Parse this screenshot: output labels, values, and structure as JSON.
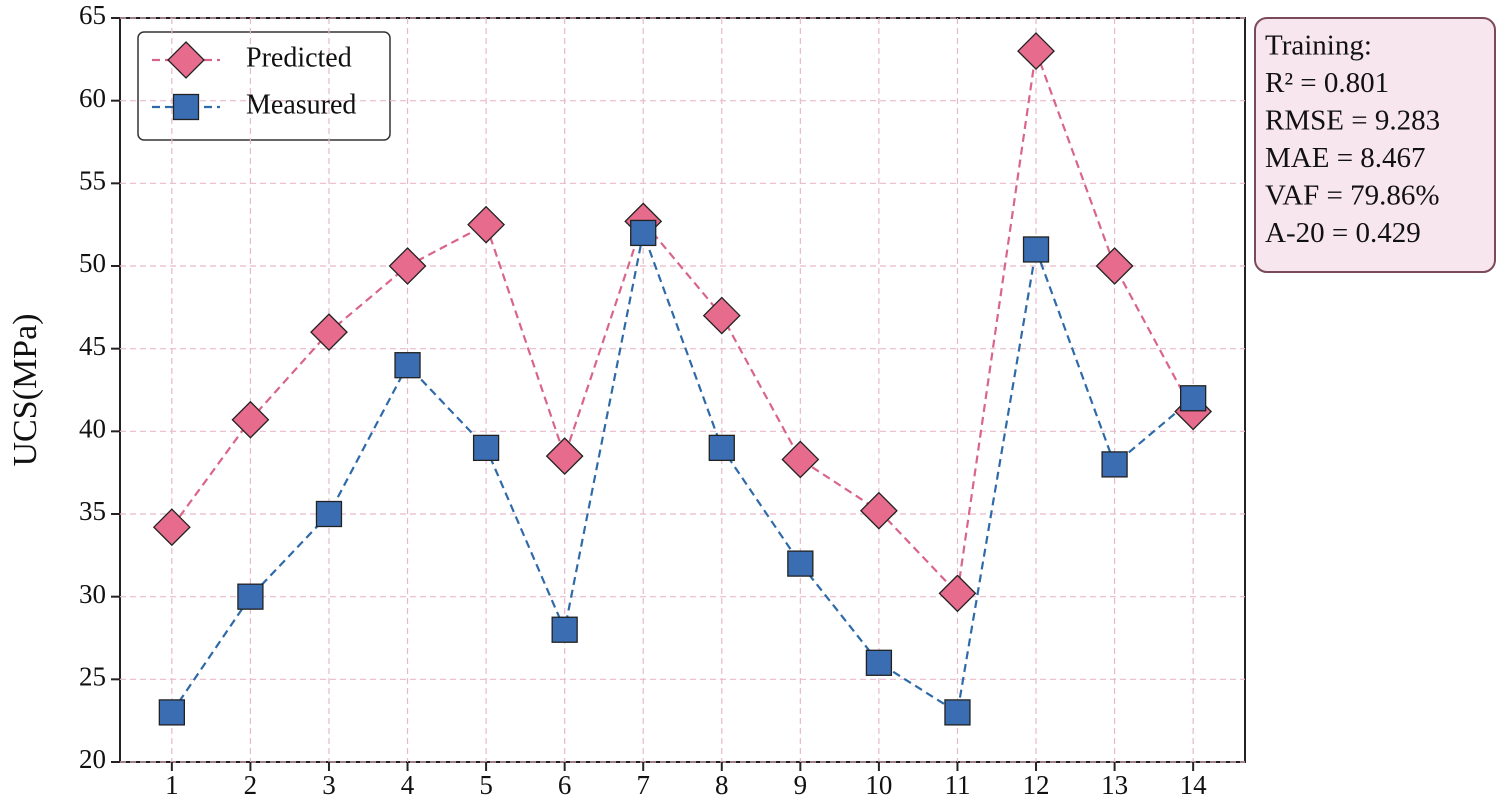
{
  "chart_data": {
    "type": "line",
    "y_label": "UCS(MPa)",
    "x": [
      1,
      2,
      3,
      4,
      5,
      6,
      7,
      8,
      9,
      10,
      11,
      12,
      13,
      14
    ],
    "xlim": [
      0.34,
      14.66
    ],
    "xticks": [
      1,
      2,
      3,
      4,
      5,
      6,
      7,
      8,
      9,
      10,
      11,
      12,
      13,
      14
    ],
    "ylim": [
      20,
      65
    ],
    "yticks": [
      20,
      25,
      30,
      35,
      40,
      45,
      50,
      55,
      60,
      65
    ],
    "grid": true,
    "legend": "upper left",
    "series": [
      {
        "name": "Predicted",
        "color": "#e66b8c",
        "line_color": "#d9658a",
        "marker": "diamond",
        "values": [
          34.2,
          40.7,
          46.0,
          50.0,
          52.5,
          38.5,
          52.7,
          47.0,
          38.3,
          35.2,
          30.2,
          63.0,
          50.0,
          41.2
        ]
      },
      {
        "name": "Measured",
        "color": "#3b6db3",
        "line_color": "#2f6aa8",
        "marker": "square",
        "values": [
          23,
          30,
          35,
          44,
          39,
          28,
          52,
          39,
          32,
          26,
          23,
          51,
          38,
          42
        ]
      }
    ],
    "annotation": [
      "Training:",
      "R² = 0.801",
      "RMSE = 9.283",
      "MAE = 8.467",
      "VAF = 79.86%",
      "A-20 = 0.429"
    ]
  }
}
